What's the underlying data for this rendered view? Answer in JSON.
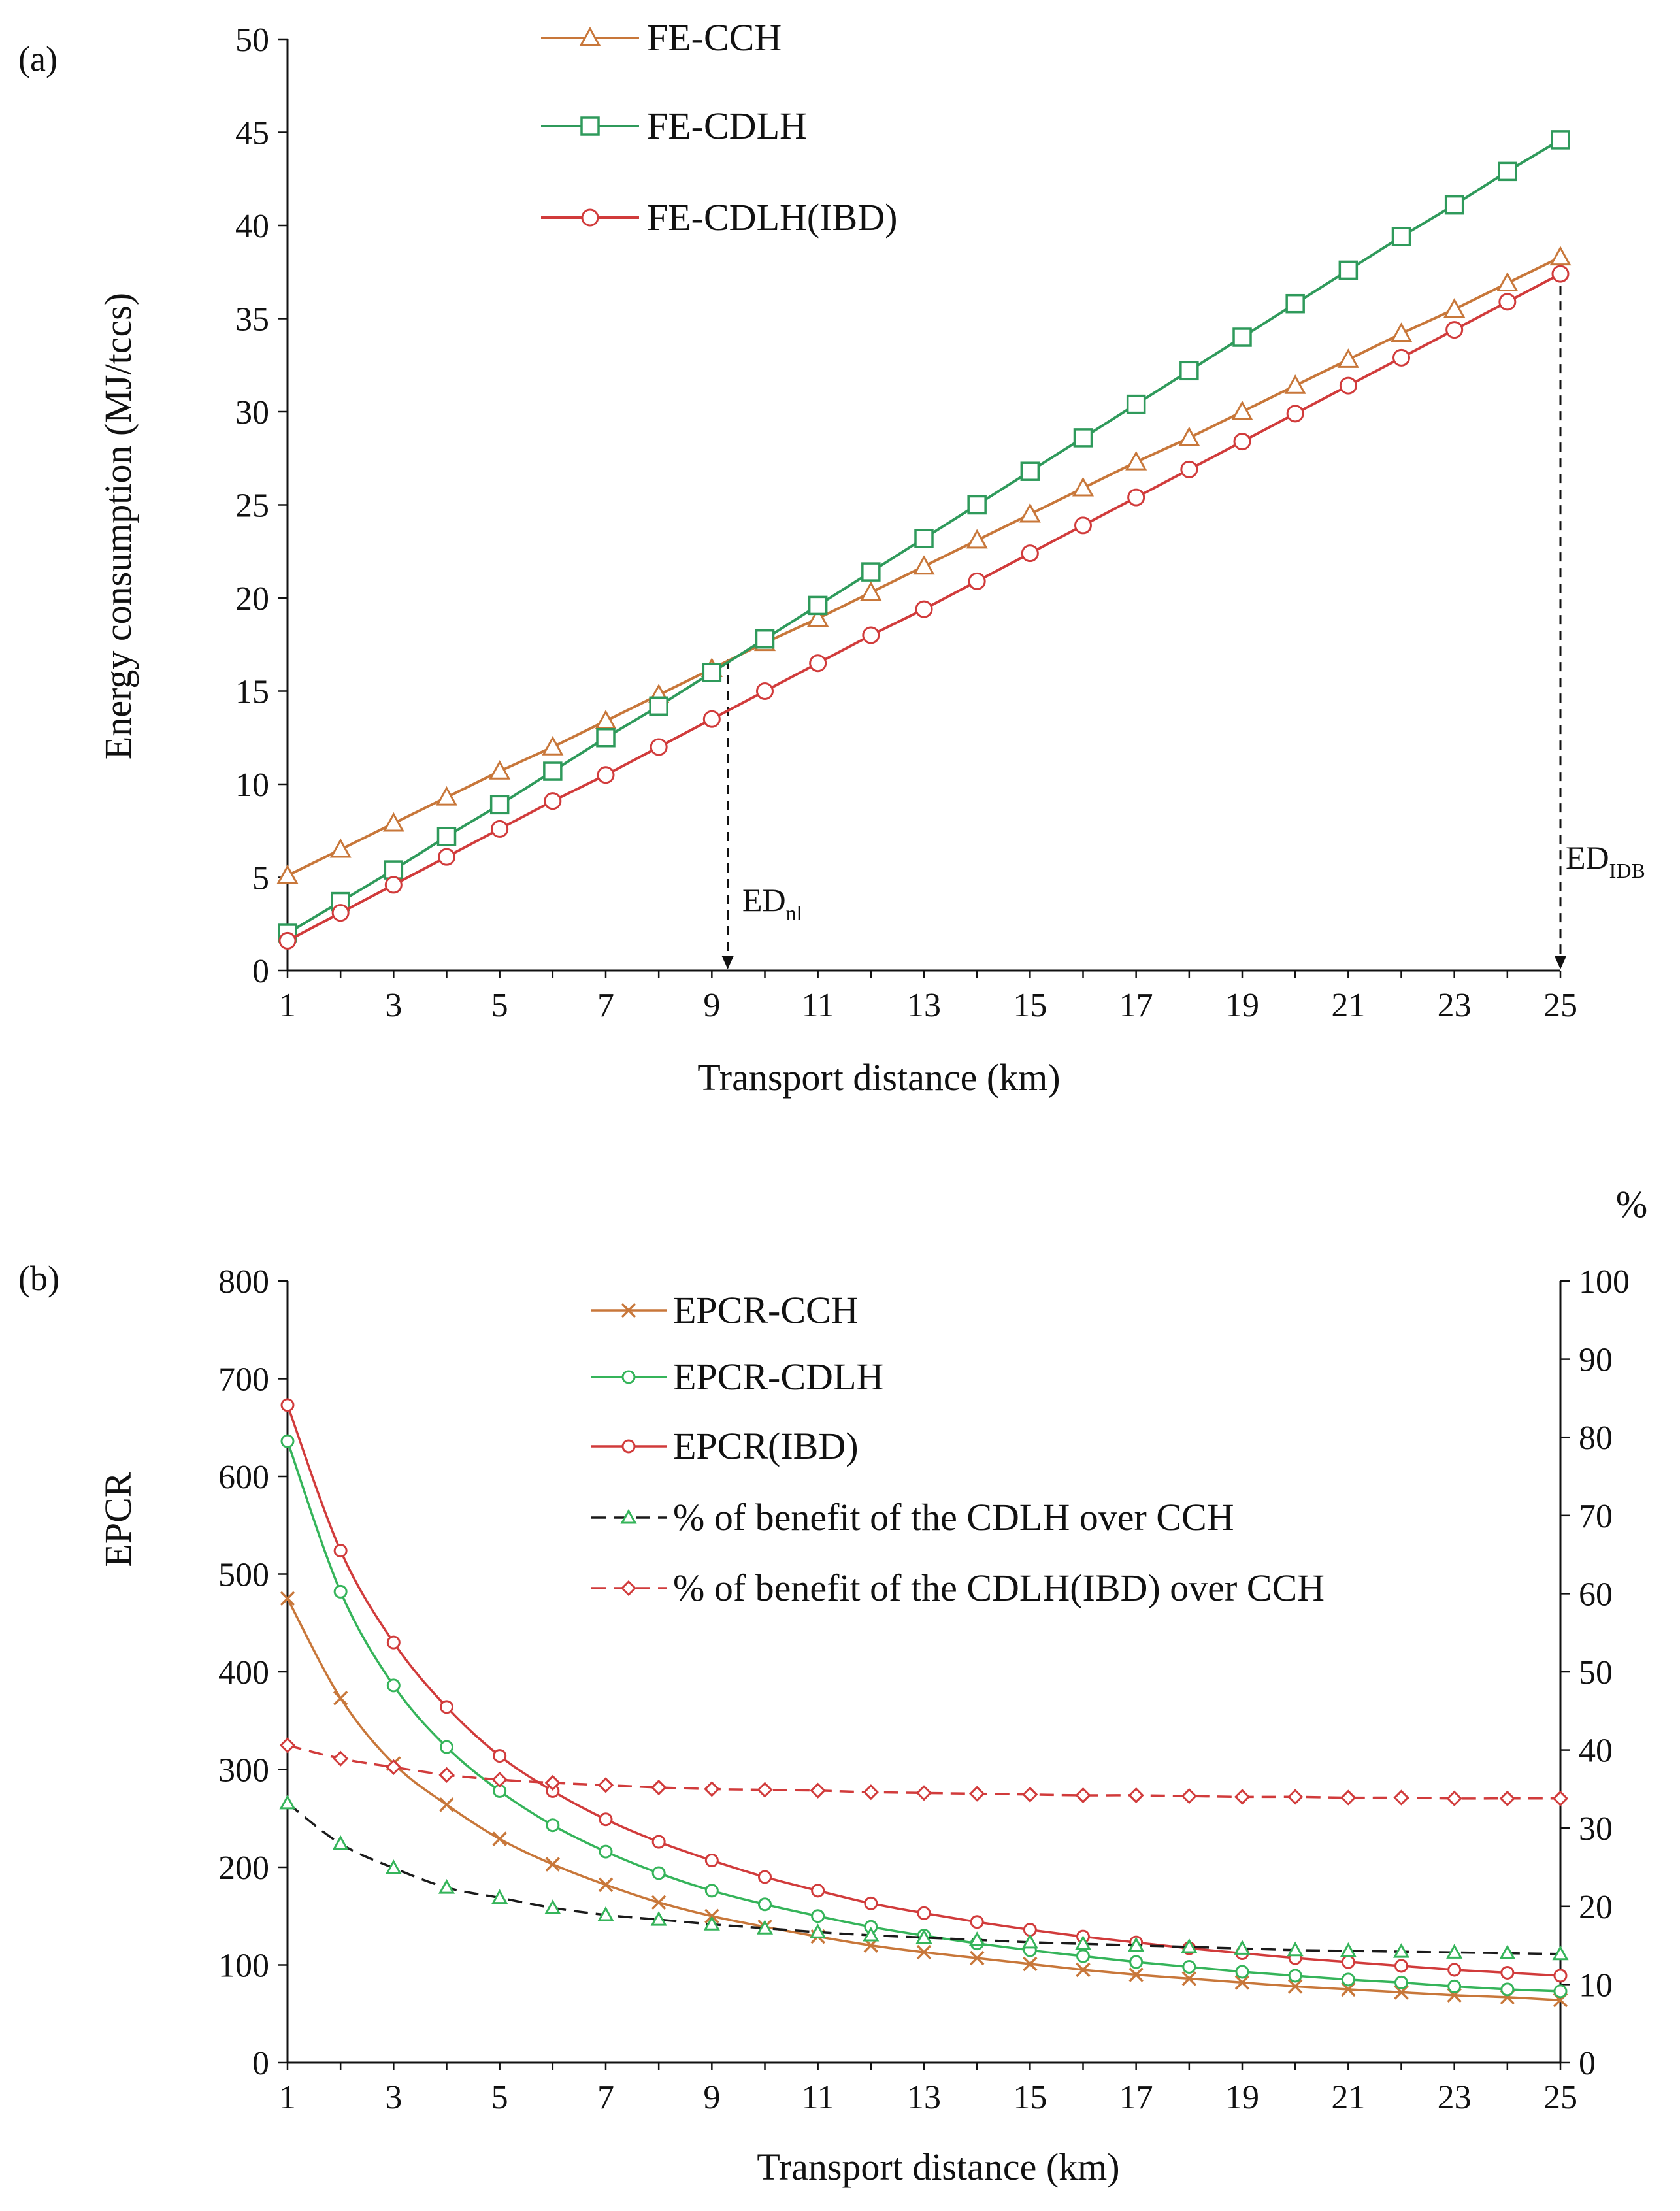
{
  "chart_data": [
    {
      "type": "line",
      "panel_label": "(a)",
      "xlabel": "Transport distance (km)",
      "ylabel": "Energy consumption (MJ/tccs)",
      "xlim": [
        1,
        25
      ],
      "ylim": [
        0,
        50
      ],
      "x_ticks": [
        "1",
        "3",
        "5",
        "7",
        "9",
        "11",
        "13",
        "15",
        "17",
        "19",
        "21",
        "23",
        "25"
      ],
      "y_ticks": [
        "0",
        "5",
        "10",
        "15",
        "20",
        "25",
        "30",
        "35",
        "40",
        "45",
        "50"
      ],
      "grid": false,
      "legend_position": "top-center",
      "x": [
        1,
        2,
        3,
        4,
        5,
        6,
        7,
        8,
        9,
        10,
        11,
        12,
        13,
        14,
        15,
        16,
        17,
        18,
        19,
        20,
        21,
        22,
        23,
        24,
        25
      ],
      "series": [
        {
          "name": "FE-CCH",
          "color": "#c8773a",
          "marker": "triangle",
          "values": [
            5.1,
            6.5,
            7.9,
            9.3,
            10.7,
            12.0,
            13.4,
            14.8,
            16.2,
            17.6,
            18.9,
            20.3,
            21.7,
            23.1,
            24.5,
            25.9,
            27.3,
            28.6,
            30.0,
            31.4,
            32.8,
            34.2,
            35.5,
            36.9,
            38.3
          ]
        },
        {
          "name": "FE-CDLH",
          "color": "#2f9a5b",
          "marker": "square",
          "values": [
            2.0,
            3.7,
            5.4,
            7.2,
            8.9,
            10.7,
            12.5,
            14.2,
            16.0,
            17.8,
            19.6,
            21.4,
            23.2,
            25.0,
            26.8,
            28.6,
            30.4,
            32.2,
            34.0,
            35.8,
            37.6,
            39.4,
            41.1,
            42.9,
            44.6
          ]
        },
        {
          "name": "FE-CDLH(IBD)",
          "color": "#d13b3b",
          "marker": "circle",
          "values": [
            1.6,
            3.1,
            4.6,
            6.1,
            7.6,
            9.1,
            10.5,
            12.0,
            13.5,
            15.0,
            16.5,
            18.0,
            19.4,
            20.9,
            22.4,
            23.9,
            25.4,
            26.9,
            28.4,
            29.9,
            31.4,
            32.9,
            34.4,
            35.9,
            37.4
          ]
        }
      ],
      "annotations": [
        {
          "text": "ED",
          "subscript": "nl",
          "x": 9.3
        },
        {
          "text": "ED",
          "subscript": "IDB",
          "x": 25
        }
      ]
    },
    {
      "type": "line",
      "panel_label": "(b)",
      "xlabel": "Transport distance (km)",
      "ylabel": "EPCR",
      "y2label": "%",
      "xlim": [
        1,
        25
      ],
      "ylim": [
        0,
        800
      ],
      "y2lim": [
        0,
        100
      ],
      "x_ticks": [
        "1",
        "3",
        "5",
        "7",
        "9",
        "11",
        "13",
        "15",
        "17",
        "19",
        "21",
        "23",
        "25"
      ],
      "y_ticks": [
        "0",
        "100",
        "200",
        "300",
        "400",
        "500",
        "600",
        "700",
        "800"
      ],
      "y2_ticks": [
        "0",
        "10",
        "20",
        "30",
        "40",
        "50",
        "60",
        "70",
        "80",
        "90",
        "100"
      ],
      "grid": false,
      "legend_position": "top-center",
      "x": [
        1,
        2,
        3,
        4,
        5,
        6,
        7,
        8,
        9,
        10,
        11,
        12,
        13,
        14,
        15,
        16,
        17,
        18,
        19,
        20,
        21,
        22,
        23,
        24,
        25
      ],
      "series": [
        {
          "name": "EPCR-CCH",
          "color": "#c8773a",
          "marker": "x",
          "axis": "left",
          "values": [
            475,
            373,
            306,
            264,
            229,
            203,
            182,
            164,
            150,
            139,
            129,
            120,
            113,
            107,
            101,
            95,
            90,
            86,
            82,
            78,
            75,
            72,
            69,
            67,
            64
          ]
        },
        {
          "name": "EPCR-CDLH",
          "color": "#35b45a",
          "marker": "circle",
          "axis": "left",
          "values": [
            636,
            482,
            386,
            323,
            278,
            243,
            216,
            194,
            176,
            162,
            150,
            139,
            130,
            122,
            115,
            109,
            103,
            98,
            93,
            89,
            85,
            82,
            78,
            75,
            73
          ]
        },
        {
          "name": "EPCR(IBD)",
          "color": "#d13b3b",
          "marker": "circle",
          "axis": "left",
          "values": [
            673,
            524,
            430,
            364,
            314,
            278,
            249,
            226,
            207,
            190,
            176,
            163,
            153,
            144,
            136,
            129,
            123,
            117,
            112,
            107,
            103,
            99,
            95,
            92,
            89
          ]
        },
        {
          "name": "% of  benefit of the CDLH over CCH",
          "color": "#1a1a1a",
          "marker_color": "#35b45a",
          "marker": "triangle",
          "dashed": true,
          "axis": "right",
          "values": [
            33.2,
            28.0,
            24.9,
            22.4,
            21.1,
            19.8,
            18.9,
            18.3,
            17.7,
            17.2,
            16.7,
            16.3,
            16.0,
            15.7,
            15.4,
            15.2,
            15.0,
            14.8,
            14.6,
            14.4,
            14.3,
            14.2,
            14.1,
            14.0,
            13.9
          ]
        },
        {
          "name": "% of  benefit of the CDLH(IBD) over CCH",
          "color": "#d13b3b",
          "marker_color": "#d13b3b",
          "marker": "diamond",
          "dashed": true,
          "axis": "right",
          "values": [
            40.6,
            38.9,
            37.8,
            36.8,
            36.2,
            35.8,
            35.5,
            35.2,
            35.0,
            34.9,
            34.8,
            34.6,
            34.5,
            34.4,
            34.3,
            34.2,
            34.2,
            34.1,
            34.0,
            34.0,
            33.9,
            33.9,
            33.8,
            33.8,
            33.8
          ]
        }
      ]
    }
  ]
}
